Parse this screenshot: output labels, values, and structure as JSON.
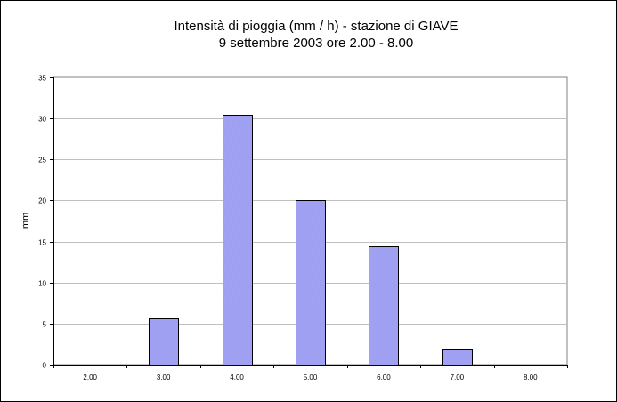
{
  "chart_data": {
    "type": "bar",
    "title": "Intensità di pioggia (mm / h)  - stazione di GIAVE",
    "subtitle": "9 settembre 2003 ore 2.00 - 8.00",
    "xlabel": "",
    "ylabel": "mm",
    "categories": [
      "2.00",
      "3.00",
      "4.00",
      "5.00",
      "6.00",
      "7.00",
      "8.00"
    ],
    "values": [
      0,
      5.6,
      30.4,
      20.0,
      14.4,
      2.0,
      0
    ],
    "ylim": [
      0,
      35
    ],
    "yticks": [
      "0",
      "5",
      "10",
      "15",
      "20",
      "25",
      "30",
      "35"
    ],
    "grid": true,
    "legend": "none",
    "colors": {
      "plot_background": "#ffffff",
      "bar_fill": "#a4a4f4",
      "bar_stroke": "#000000",
      "grid": "#c0c0c0"
    }
  }
}
